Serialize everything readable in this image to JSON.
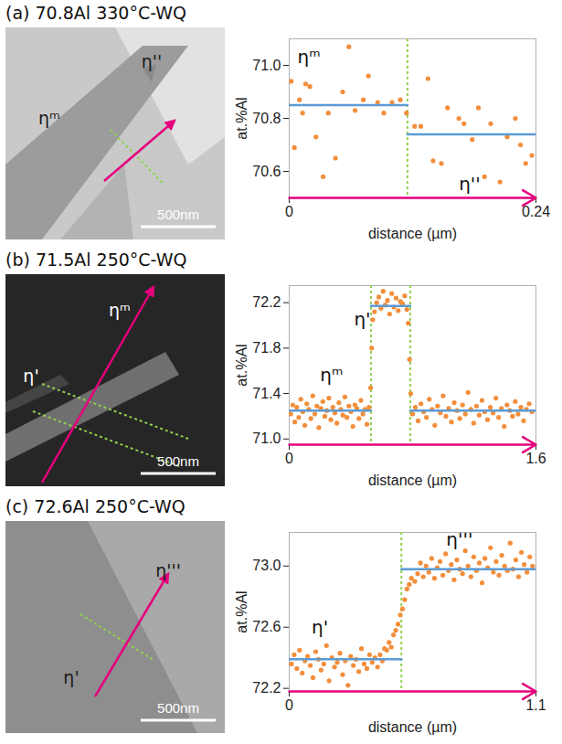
{
  "chart_data": [
    {
      "type": "scatter",
      "title": "(a) 70.8Al 330°C-WQ",
      "x_label": "distance (µm)",
      "y_label": "at.%Al",
      "xlim": [
        0,
        0.24
      ],
      "ylim": [
        70.5,
        71.1
      ],
      "xticks": [
        0,
        0.24
      ],
      "yticks": [
        70.6,
        70.8,
        {
          "value": 71,
          "label": "71.0"
        }
      ],
      "color": "#f28e3c",
      "marker": "circle",
      "x": [
        0.002,
        0.005,
        0.01,
        0.013,
        0.016,
        0.02,
        0.026,
        0.033,
        0.038,
        0.045,
        0.052,
        0.058,
        0.064,
        0.072,
        0.077,
        0.086,
        0.092,
        0.1,
        0.108,
        0.114,
        0.122,
        0.128,
        0.135,
        0.14,
        0.148,
        0.154,
        0.165,
        0.17,
        0.178,
        0.184,
        0.19,
        0.196,
        0.205,
        0.212,
        0.22,
        0.225,
        0.23,
        0.236
      ],
      "values": [
        70.94,
        70.69,
        70.87,
        70.82,
        70.93,
        70.92,
        70.73,
        70.58,
        70.82,
        70.65,
        70.9,
        71.07,
        70.83,
        70.87,
        70.96,
        70.86,
        70.82,
        70.86,
        70.87,
        70.82,
        70.77,
        70.77,
        70.95,
        70.64,
        70.63,
        70.84,
        70.8,
        70.78,
        70.72,
        70.84,
        70.58,
        70.78,
        70.56,
        70.73,
        70.8,
        70.7,
        70.63,
        70.66
      ],
      "levels": [
        {
          "from": 0,
          "to": 0.115,
          "value": 70.85
        },
        {
          "from": 0.115,
          "to": 0.24,
          "value": 70.74
        }
      ],
      "boundaries": [
        0.115
      ],
      "annotations": [
        {
          "text": "ηᵐ",
          "x": 0.008,
          "y": 71.03
        },
        {
          "text": "η''",
          "x": 0.165,
          "y": 70.55
        }
      ]
    },
    {
      "type": "scatter",
      "title": "(b) 71.5Al 250°C-WQ",
      "x_label": "distance (µm)",
      "y_label": "at.%Al",
      "xlim": [
        0,
        1.6
      ],
      "ylim": [
        70.95,
        72.35
      ],
      "xticks": [
        0,
        1.6
      ],
      "yticks": [
        {
          "value": 71,
          "label": "71.0"
        },
        71.4,
        71.8,
        72.2
      ],
      "color": "#f28e3c",
      "marker": "circle",
      "x": [
        0.01,
        0.023,
        0.036,
        0.049,
        0.062,
        0.075,
        0.088,
        0.101,
        0.114,
        0.127,
        0.14,
        0.153,
        0.166,
        0.179,
        0.192,
        0.205,
        0.218,
        0.231,
        0.244,
        0.257,
        0.27,
        0.283,
        0.296,
        0.309,
        0.322,
        0.335,
        0.348,
        0.361,
        0.374,
        0.387,
        0.4,
        0.413,
        0.426,
        0.439,
        0.452,
        0.465,
        0.478,
        0.491,
        0.504,
        0.517,
        0.528,
        0.535,
        0.542,
        0.553,
        0.567,
        0.581,
        0.595,
        0.609,
        0.623,
        0.637,
        0.651,
        0.665,
        0.679,
        0.693,
        0.707,
        0.721,
        0.735,
        0.749,
        0.763,
        0.772,
        0.78,
        0.788,
        0.8,
        0.818,
        0.836,
        0.854,
        0.872,
        0.89,
        0.908,
        0.926,
        0.944,
        0.962,
        0.98,
        0.998,
        1.016,
        1.034,
        1.052,
        1.07,
        1.088,
        1.106,
        1.124,
        1.142,
        1.16,
        1.178,
        1.196,
        1.214,
        1.232,
        1.25,
        1.268,
        1.286,
        1.304,
        1.322,
        1.34,
        1.358,
        1.376,
        1.394,
        1.412,
        1.43,
        1.448,
        1.466,
        1.484,
        1.502,
        1.52,
        1.538,
        1.556,
        1.574
      ],
      "values": [
        71.22,
        71.3,
        71.15,
        71.28,
        71.19,
        71.35,
        71.24,
        71.12,
        71.31,
        71.26,
        71.18,
        71.38,
        71.22,
        71.29,
        71.1,
        71.27,
        71.33,
        71.2,
        71.25,
        71.36,
        71.17,
        71.28,
        71.23,
        71.14,
        71.32,
        71.26,
        71.21,
        71.37,
        71.19,
        71.29,
        71.24,
        71.11,
        71.3,
        71.27,
        71.18,
        71.34,
        71.22,
        71.26,
        71.13,
        71.28,
        71.45,
        71.8,
        72.05,
        72.12,
        72.2,
        72.25,
        72.15,
        72.3,
        72.18,
        72.22,
        72.1,
        72.28,
        72.16,
        72.24,
        72.13,
        72.21,
        72.19,
        72.26,
        72.14,
        72.02,
        71.7,
        71.4,
        71.22,
        71.28,
        71.16,
        71.31,
        71.24,
        71.19,
        71.35,
        71.26,
        71.12,
        71.29,
        71.23,
        71.38,
        71.2,
        71.27,
        71.15,
        71.32,
        71.25,
        71.18,
        71.3,
        71.22,
        71.41,
        71.26,
        71.14,
        71.29,
        71.21,
        71.34,
        71.24,
        71.17,
        71.28,
        71.23,
        71.36,
        71.19,
        71.27,
        71.11,
        71.3,
        71.25,
        71.2,
        71.33,
        71.22,
        71.28,
        71.16,
        71.26,
        71.31,
        71.24
      ],
      "levels": [
        {
          "from": 0,
          "to": 0.53,
          "value": 71.25
        },
        {
          "from": 0.53,
          "to": 0.785,
          "value": 72.17
        },
        {
          "from": 0.785,
          "to": 1.6,
          "value": 71.25
        }
      ],
      "boundaries": [
        0.53,
        0.785
      ],
      "annotations": [
        {
          "text": "ηᵐ",
          "x": 0.2,
          "y": 71.56
        },
        {
          "text": "η'",
          "x": 0.42,
          "y": 72.05
        }
      ]
    },
    {
      "type": "scatter",
      "title": "(c) 72.6Al 250°C-WQ",
      "x_label": "distance (µm)",
      "y_label": "at.%Al",
      "xlim": [
        0,
        1.1
      ],
      "ylim": [
        72.18,
        73.22
      ],
      "xticks": [
        0,
        1.1
      ],
      "yticks": [
        72.2,
        72.6,
        {
          "value": 73,
          "label": "73.0"
        }
      ],
      "color": "#f28e3c",
      "marker": "circle",
      "x": [
        0.01,
        0.022,
        0.034,
        0.046,
        0.058,
        0.07,
        0.082,
        0.094,
        0.106,
        0.118,
        0.13,
        0.142,
        0.154,
        0.166,
        0.178,
        0.19,
        0.202,
        0.214,
        0.226,
        0.238,
        0.25,
        0.262,
        0.274,
        0.286,
        0.298,
        0.31,
        0.322,
        0.334,
        0.346,
        0.358,
        0.37,
        0.382,
        0.394,
        0.405,
        0.415,
        0.425,
        0.435,
        0.445,
        0.455,
        0.465,
        0.475,
        0.485,
        0.495,
        0.505,
        0.515,
        0.525,
        0.535,
        0.545,
        0.56,
        0.5725,
        0.585,
        0.5975,
        0.61,
        0.6225,
        0.635,
        0.6475,
        0.66,
        0.6725,
        0.685,
        0.6975,
        0.71,
        0.7225,
        0.735,
        0.7475,
        0.76,
        0.7725,
        0.785,
        0.7975,
        0.81,
        0.8225,
        0.835,
        0.8475,
        0.86,
        0.8725,
        0.885,
        0.8975,
        0.91,
        0.9225,
        0.935,
        0.9475,
        0.96,
        0.9725,
        0.985,
        0.9975,
        1.01,
        1.0225,
        1.035,
        1.0475,
        1.06,
        1.0725,
        1.085
      ],
      "values": [
        72.36,
        72.42,
        72.33,
        72.45,
        72.3,
        72.38,
        72.41,
        72.35,
        72.27,
        72.44,
        72.39,
        72.32,
        72.36,
        72.48,
        72.25,
        72.4,
        72.34,
        72.37,
        72.43,
        72.29,
        72.38,
        72.22,
        72.41,
        72.35,
        72.39,
        72.31,
        72.46,
        72.36,
        72.33,
        72.42,
        72.37,
        72.4,
        72.34,
        72.42,
        72.38,
        72.46,
        72.45,
        72.5,
        72.47,
        72.55,
        72.58,
        72.62,
        72.68,
        72.72,
        72.78,
        72.85,
        72.88,
        72.92,
        72.9,
        72.95,
        73.02,
        72.93,
        73.0,
        72.96,
        73.05,
        72.92,
        72.99,
        73.03,
        72.94,
        73.08,
        72.97,
        73.01,
        72.91,
        73.04,
        72.98,
        72.95,
        73.1,
        73.0,
        72.93,
        73.06,
        72.97,
        73.02,
        72.89,
        73.05,
        72.99,
        73.12,
        72.96,
        73.03,
        72.94,
        73.07,
        73.0,
        72.97,
        73.15,
        72.98,
        73.04,
        72.93,
        73.09,
        73.01,
        72.96,
        73.06,
        73.0
      ],
      "levels": [
        {
          "from": 0,
          "to": 0.5,
          "value": 72.39
        },
        {
          "from": 0.5,
          "to": 1.1,
          "value": 72.98
        }
      ],
      "boundaries": [
        0.5
      ],
      "annotations": [
        {
          "text": "η'",
          "x": 0.1,
          "y": 72.6
        },
        {
          "text": "η'''",
          "x": 0.7,
          "y": 73.17
        }
      ]
    }
  ],
  "micrographs": [
    {
      "labels": [
        "η''",
        "ηᵐ"
      ],
      "scale_bar": "500nm"
    },
    {
      "labels": [
        "ηᵐ",
        "η'"
      ],
      "scale_bar": "500nm"
    },
    {
      "labels": [
        "η'''",
        "η'"
      ],
      "scale_bar": "500nm"
    }
  ]
}
